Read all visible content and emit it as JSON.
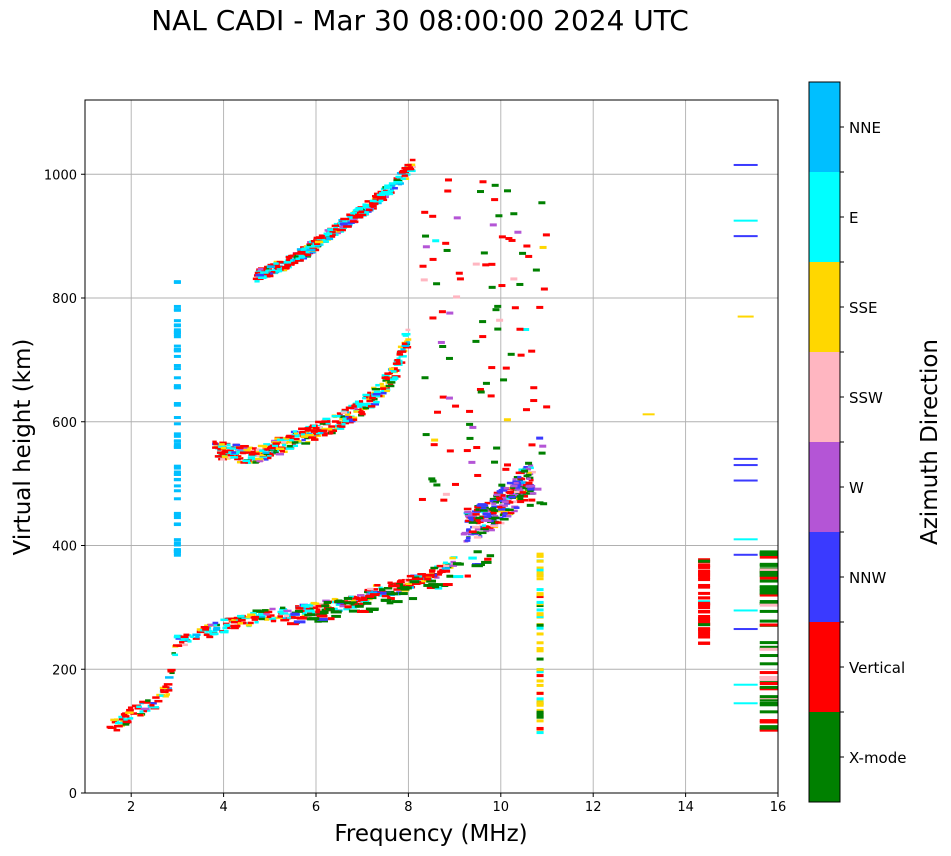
{
  "chart_data": {
    "type": "scatter",
    "title": "NAL CADI - Mar 30 08:00:00 2024 UTC",
    "xlabel": "Frequency (MHz)",
    "ylabel": "Virtual height (km)",
    "xlim": [
      1,
      16
    ],
    "ylim": [
      0,
      1120
    ],
    "xticks": [
      "2",
      "4",
      "6",
      "8",
      "10",
      "12",
      "14",
      "16"
    ],
    "yticks": [
      "0",
      "200",
      "400",
      "600",
      "800",
      "1000"
    ],
    "grid": true,
    "colorbar": {
      "label": "Azimuth Direction",
      "categories": [
        {
          "name": "X-mode",
          "color": "#008000"
        },
        {
          "name": "Vertical",
          "color": "#ff0000"
        },
        {
          "name": "NNW",
          "color": "#3a3aff"
        },
        {
          "name": "W",
          "color": "#b455d6"
        },
        {
          "name": "SSW",
          "color": "#ffb6c1"
        },
        {
          "name": "SSE",
          "color": "#ffd700"
        },
        {
          "name": "E",
          "color": "#00ffff"
        },
        {
          "name": "NNE",
          "color": "#00bfff"
        }
      ]
    },
    "traces": [
      {
        "name": "trace-O-first-hop",
        "f": [
          1.5,
          1.8,
          2.0,
          2.3,
          2.6,
          2.8,
          3.0,
          3.4,
          3.8,
          4.2,
          4.8,
          5.5,
          6.2,
          6.8,
          7.3,
          7.7,
          8.0,
          8.3,
          8.7,
          9.0
        ],
        "h": [
          105,
          115,
          128,
          138,
          150,
          170,
          245,
          255,
          265,
          275,
          285,
          290,
          300,
          310,
          325,
          330,
          340,
          350,
          360,
          375
        ]
      },
      {
        "name": "trace-O-second-hop",
        "f": [
          3.8,
          4.2,
          4.6,
          5.0,
          5.5,
          6.0,
          6.5,
          7.0,
          7.4,
          7.7,
          8.0
        ],
        "h": [
          555,
          550,
          545,
          555,
          570,
          585,
          600,
          625,
          650,
          680,
          740
        ]
      },
      {
        "name": "trace-O-third-hop",
        "f": [
          4.7,
          5.2,
          5.8,
          6.2,
          6.7,
          7.1,
          7.5,
          7.8,
          8.1
        ],
        "h": [
          835,
          850,
          875,
          900,
          925,
          945,
          970,
          990,
          1015
        ]
      },
      {
        "name": "trace-scatter-cluster",
        "f": [
          9.2,
          9.5,
          9.8,
          10.1,
          10.4,
          10.7
        ],
        "h": [
          430,
          440,
          450,
          470,
          490,
          510
        ]
      }
    ],
    "vertical_streaks": [
      {
        "f": 3.0,
        "h_min": 380,
        "h_max": 830
      },
      {
        "f": 10.85,
        "h_min": 90,
        "h_max": 390
      },
      {
        "f": 14.4,
        "h_min": 240,
        "h_max": 385
      },
      {
        "f": 15.8,
        "h_min": 95,
        "h_max": 390
      }
    ]
  }
}
